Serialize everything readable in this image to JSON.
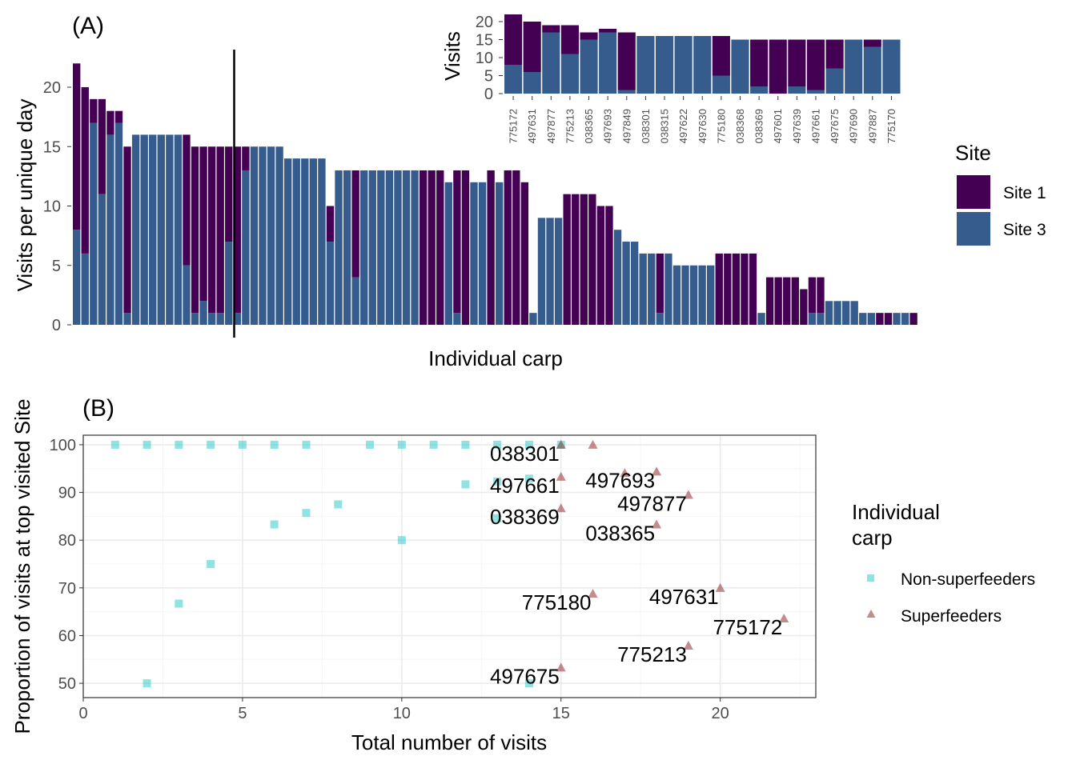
{
  "colors": {
    "site1": "#440154",
    "site3": "#365C8D",
    "non_superfeeder": "#1FC8C8",
    "superfeeder": "#8B1A1A",
    "panel_border": "#333333",
    "grid_major": "#EBEBEB",
    "grid_minor": "#F5F5F5",
    "axis_text": "#4D4D4D"
  },
  "panel_a": {
    "tag": "(A)",
    "xlabel": "Individual carp",
    "ylabel": "Visits per unique day",
    "legend": {
      "title": "Site",
      "items": [
        "Site 1",
        "Site 3"
      ]
    },
    "inset_ylabel": "Visits"
  },
  "panel_b": {
    "tag": "(B)",
    "xlabel": "Total number of visits",
    "ylabel": "Proportion of visits at top visited Site",
    "legend": {
      "title_line1": "Individual",
      "title_line2": "carp",
      "items": [
        "Non-superfeeders",
        "Superfeeders"
      ]
    }
  },
  "chart_data": [
    {
      "type": "bar",
      "stacked": true,
      "title": "(A)",
      "xlabel": "Individual carp",
      "ylabel": "Visits per unique day",
      "ylim": [
        0,
        23
      ],
      "yticks": [
        0,
        5,
        10,
        15,
        20
      ],
      "grid": false,
      "legend_position": "right",
      "legend_title": "Site",
      "vline_after_index": 8,
      "categories_count": 100,
      "series": [
        {
          "name": "Site 1",
          "values": [
            14,
            14,
            2,
            8,
            2,
            1,
            14,
            0,
            0,
            0,
            0,
            0,
            0,
            11,
            14,
            13,
            14,
            14,
            8,
            14,
            2,
            0,
            0,
            0,
            0,
            0,
            0,
            0,
            0,
            0,
            3,
            0,
            0,
            9,
            0,
            0,
            0,
            0,
            0,
            0,
            0,
            13,
            13,
            13,
            0,
            12,
            13,
            0,
            0,
            13,
            0,
            13,
            13,
            12,
            0,
            0,
            0,
            0,
            11,
            11,
            11,
            11,
            10,
            10,
            0,
            0,
            0,
            0,
            0,
            5,
            0,
            0,
            0,
            0,
            0,
            0,
            6,
            6,
            6,
            6,
            6,
            0,
            4,
            4,
            4,
            4,
            3,
            3,
            3,
            0,
            0,
            0,
            0,
            0,
            0,
            1,
            1,
            0,
            0,
            1
          ]
        },
        {
          "name": "Site 3",
          "values": [
            8,
            6,
            17,
            11,
            16,
            17,
            1,
            16,
            16,
            16,
            16,
            16,
            16,
            5,
            1,
            2,
            1,
            1,
            7,
            1,
            13,
            15,
            15,
            15,
            15,
            14,
            14,
            14,
            14,
            14,
            7,
            13,
            13,
            4,
            13,
            13,
            13,
            13,
            13,
            13,
            13,
            0,
            0,
            0,
            12,
            1,
            0,
            12,
            12,
            0,
            12,
            0,
            0,
            0,
            1,
            9,
            9,
            9,
            0,
            0,
            0,
            0,
            0,
            0,
            8,
            7,
            7,
            6,
            6,
            1,
            6,
            5,
            5,
            5,
            5,
            5,
            0,
            0,
            0,
            0,
            0,
            1,
            0,
            0,
            0,
            0,
            0,
            1,
            1,
            2,
            2,
            2,
            2,
            1,
            1,
            0,
            0,
            1,
            1,
            0
          ]
        }
      ]
    },
    {
      "type": "bar",
      "stacked": true,
      "title": "",
      "xlabel": "",
      "ylabel": "Visits",
      "ylim": [
        0,
        22
      ],
      "yticks": [
        0,
        5,
        10,
        15,
        20
      ],
      "categories": [
        "775172",
        "497631",
        "497877",
        "775213",
        "038365",
        "497693",
        "497849",
        "038301",
        "038315",
        "497622",
        "497630",
        "775180",
        "038368",
        "038369",
        "497601",
        "497639",
        "497661",
        "497675",
        "497690",
        "497887",
        "775170"
      ],
      "series": [
        {
          "name": "Site 1",
          "values": [
            14,
            14,
            2,
            8,
            2,
            1,
            16,
            0,
            0,
            0,
            0,
            11,
            0,
            13,
            15,
            13,
            14,
            8,
            0,
            2,
            0
          ]
        },
        {
          "name": "Site 3",
          "values": [
            8,
            6,
            17,
            11,
            15,
            17,
            1,
            16,
            16,
            16,
            16,
            5,
            15,
            2,
            0,
            2,
            1,
            7,
            15,
            13,
            15
          ]
        }
      ]
    },
    {
      "type": "scatter",
      "title": "(B)",
      "xlabel": "Total number of visits",
      "ylabel": "Proportion of visits at top visited Site",
      "xlim": [
        0,
        23
      ],
      "ylim": [
        47,
        102
      ],
      "xticks": [
        0,
        5,
        10,
        15,
        20
      ],
      "yticks": [
        50,
        60,
        70,
        80,
        90,
        100
      ],
      "grid": true,
      "legend_position": "right",
      "legend_title": "Individual carp",
      "series": [
        {
          "name": "Non-superfeeders",
          "points": [
            {
              "x": 1,
              "y": 100
            },
            {
              "x": 2,
              "y": 100
            },
            {
              "x": 3,
              "y": 100
            },
            {
              "x": 4,
              "y": 100
            },
            {
              "x": 5,
              "y": 100
            },
            {
              "x": 6,
              "y": 100
            },
            {
              "x": 7,
              "y": 100
            },
            {
              "x": 9,
              "y": 100
            },
            {
              "x": 10,
              "y": 100
            },
            {
              "x": 11,
              "y": 100
            },
            {
              "x": 12,
              "y": 100
            },
            {
              "x": 13,
              "y": 100
            },
            {
              "x": 14,
              "y": 100
            },
            {
              "x": 15,
              "y": 100
            },
            {
              "x": 12,
              "y": 91.7
            },
            {
              "x": 13,
              "y": 92.3
            },
            {
              "x": 14,
              "y": 92.9
            },
            {
              "x": 13,
              "y": 84.6
            },
            {
              "x": 8,
              "y": 87.5
            },
            {
              "x": 7,
              "y": 85.7
            },
            {
              "x": 6,
              "y": 83.3
            },
            {
              "x": 10,
              "y": 80
            },
            {
              "x": 4,
              "y": 75
            },
            {
              "x": 3,
              "y": 66.7
            },
            {
              "x": 2,
              "y": 50
            },
            {
              "x": 14,
              "y": 50
            }
          ]
        },
        {
          "name": "Superfeeders",
          "points": [
            {
              "x": 16,
              "y": 100,
              "label": ""
            },
            {
              "x": 15,
              "y": 100,
              "label": "038301"
            },
            {
              "x": 15,
              "y": 93.3,
              "label": "497661"
            },
            {
              "x": 17,
              "y": 94.1,
              "label": ""
            },
            {
              "x": 18,
              "y": 94.4,
              "label": "497693"
            },
            {
              "x": 19,
              "y": 89.5,
              "label": "497877"
            },
            {
              "x": 15,
              "y": 86.7,
              "label": "038369"
            },
            {
              "x": 18,
              "y": 83.3,
              "label": "038365"
            },
            {
              "x": 16,
              "y": 68.8,
              "label": "775180"
            },
            {
              "x": 20,
              "y": 70,
              "label": "497631"
            },
            {
              "x": 22,
              "y": 63.6,
              "label": "775172"
            },
            {
              "x": 19,
              "y": 57.9,
              "label": "775213"
            },
            {
              "x": 15,
              "y": 53.3,
              "label": "497675"
            }
          ]
        }
      ]
    }
  ]
}
